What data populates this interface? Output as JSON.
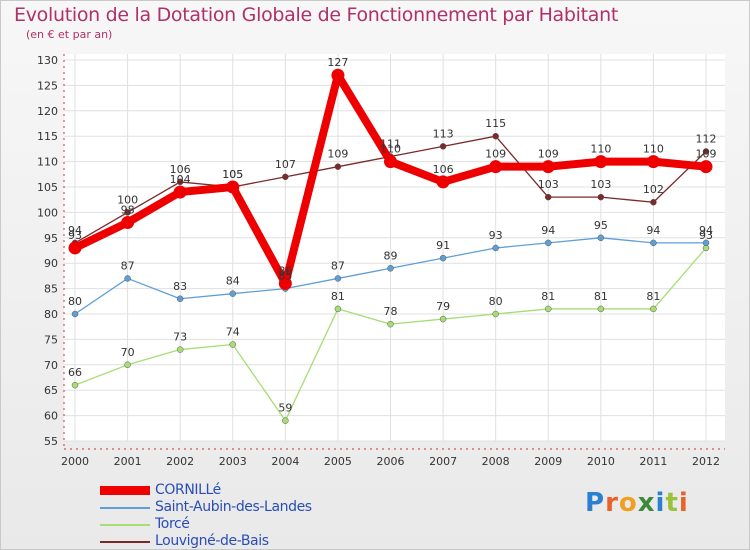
{
  "header": {
    "title": "Evolution de la Dotation Globale de Fonctionnement par Habitant",
    "subtitle": "(en € et par an)"
  },
  "logo": {
    "text": "Proxiti"
  },
  "colors": {
    "title": "#b0306a",
    "legend_text": "#2a4db5"
  },
  "chart_data": {
    "type": "line",
    "x": [
      2000,
      2001,
      2002,
      2003,
      2004,
      2005,
      2006,
      2007,
      2008,
      2009,
      2010,
      2011,
      2012
    ],
    "ylim": [
      55,
      130
    ],
    "yticks": [
      55,
      60,
      65,
      70,
      75,
      80,
      85,
      90,
      95,
      100,
      105,
      110,
      115,
      120,
      125,
      130
    ],
    "grid": true,
    "legend_position": "bottom-left",
    "series": [
      {
        "name": "CORNILLé",
        "color": "#ee0000",
        "values": [
          93,
          98,
          104,
          105,
          86,
          127,
          110,
          106,
          109,
          109,
          110,
          110,
          109
        ]
      },
      {
        "name": "Saint-Aubin-des-Landes",
        "color": "#5f9fd6",
        "values": [
          80,
          87,
          83,
          84,
          85,
          87,
          89,
          91,
          93,
          94,
          95,
          94,
          94
        ]
      },
      {
        "name": "Torcé",
        "color": "#a6dd74",
        "values": [
          66,
          70,
          73,
          74,
          59,
          81,
          78,
          79,
          80,
          81,
          81,
          81,
          93
        ]
      },
      {
        "name": "Louvigné-de-Bais",
        "color": "#7a2a2a",
        "values": [
          94,
          100,
          106,
          105,
          107,
          109,
          111,
          113,
          115,
          103,
          103,
          102,
          112
        ]
      }
    ]
  }
}
